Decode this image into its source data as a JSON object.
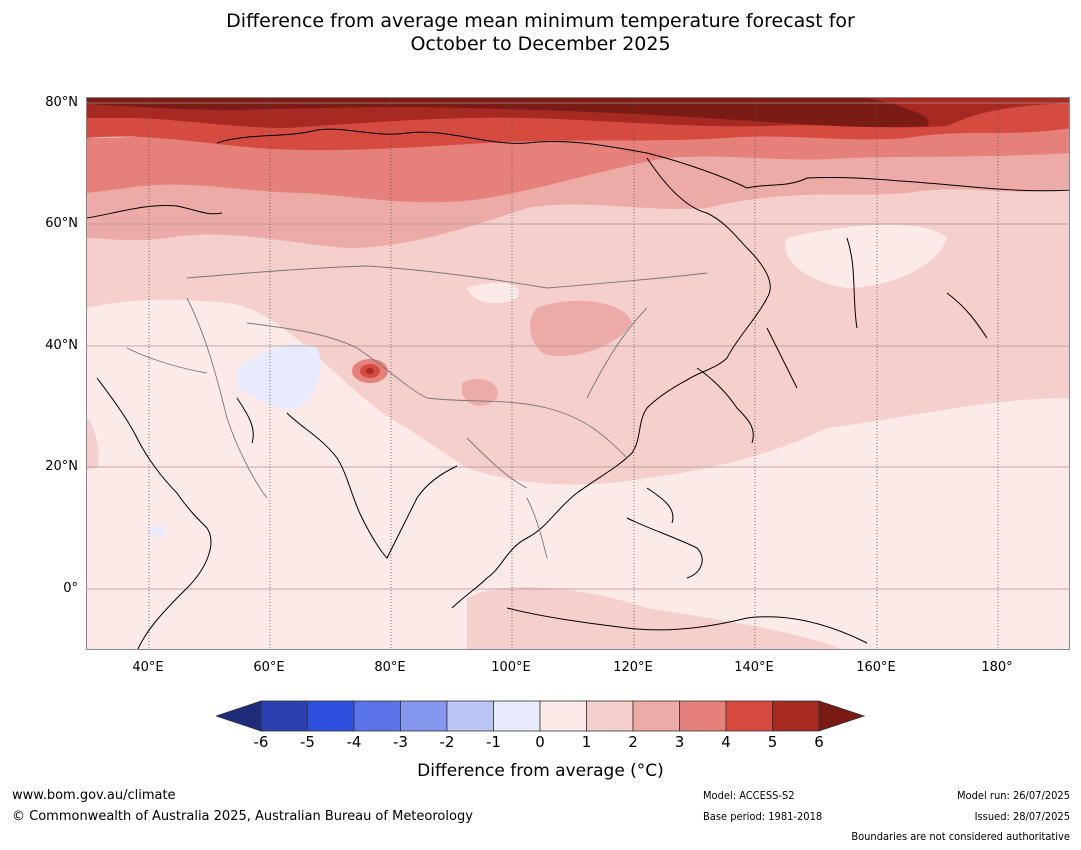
{
  "title": {
    "line1": "Difference from average mean minimum temperature forecast for",
    "line2": "October to December 2025"
  },
  "map": {
    "lat_labels": [
      "80°N",
      "60°N",
      "40°N",
      "20°N",
      "0°"
    ],
    "lon_labels": [
      "40°E",
      "60°E",
      "80°E",
      "100°E",
      "120°E",
      "140°E",
      "160°E",
      "180°"
    ],
    "lon_range": [
      30,
      192
    ],
    "lat_range": [
      -10,
      81
    ]
  },
  "colorbar": {
    "ticks": [
      "-6",
      "-5",
      "-4",
      "-3",
      "-2",
      "-1",
      "0",
      "1",
      "2",
      "3",
      "4",
      "5",
      "6"
    ],
    "colors": [
      "#1e2c7a",
      "#2a3fb0",
      "#2f4fe0",
      "#5a73e8",
      "#8597ee",
      "#bcc6f6",
      "#e8ebfb",
      "#fbeae8",
      "#f4cfcc",
      "#edaba7",
      "#e5807a",
      "#d64b40",
      "#a62a22",
      "#7a1b15"
    ],
    "label": "Difference from average (°C)"
  },
  "footer": {
    "website": "www.bom.gov.au/climate",
    "copyright": "© Commonwealth of Australia 2025, Australian Bureau of Meteorology",
    "model": "Model: ACCESS-S2",
    "base_period": "Base period: 1981-2018",
    "model_run": "Model run: 26/07/2025",
    "issued": "Issued: 28/07/2025",
    "disclaimer": "Boundaries are not considered authoritative"
  }
}
